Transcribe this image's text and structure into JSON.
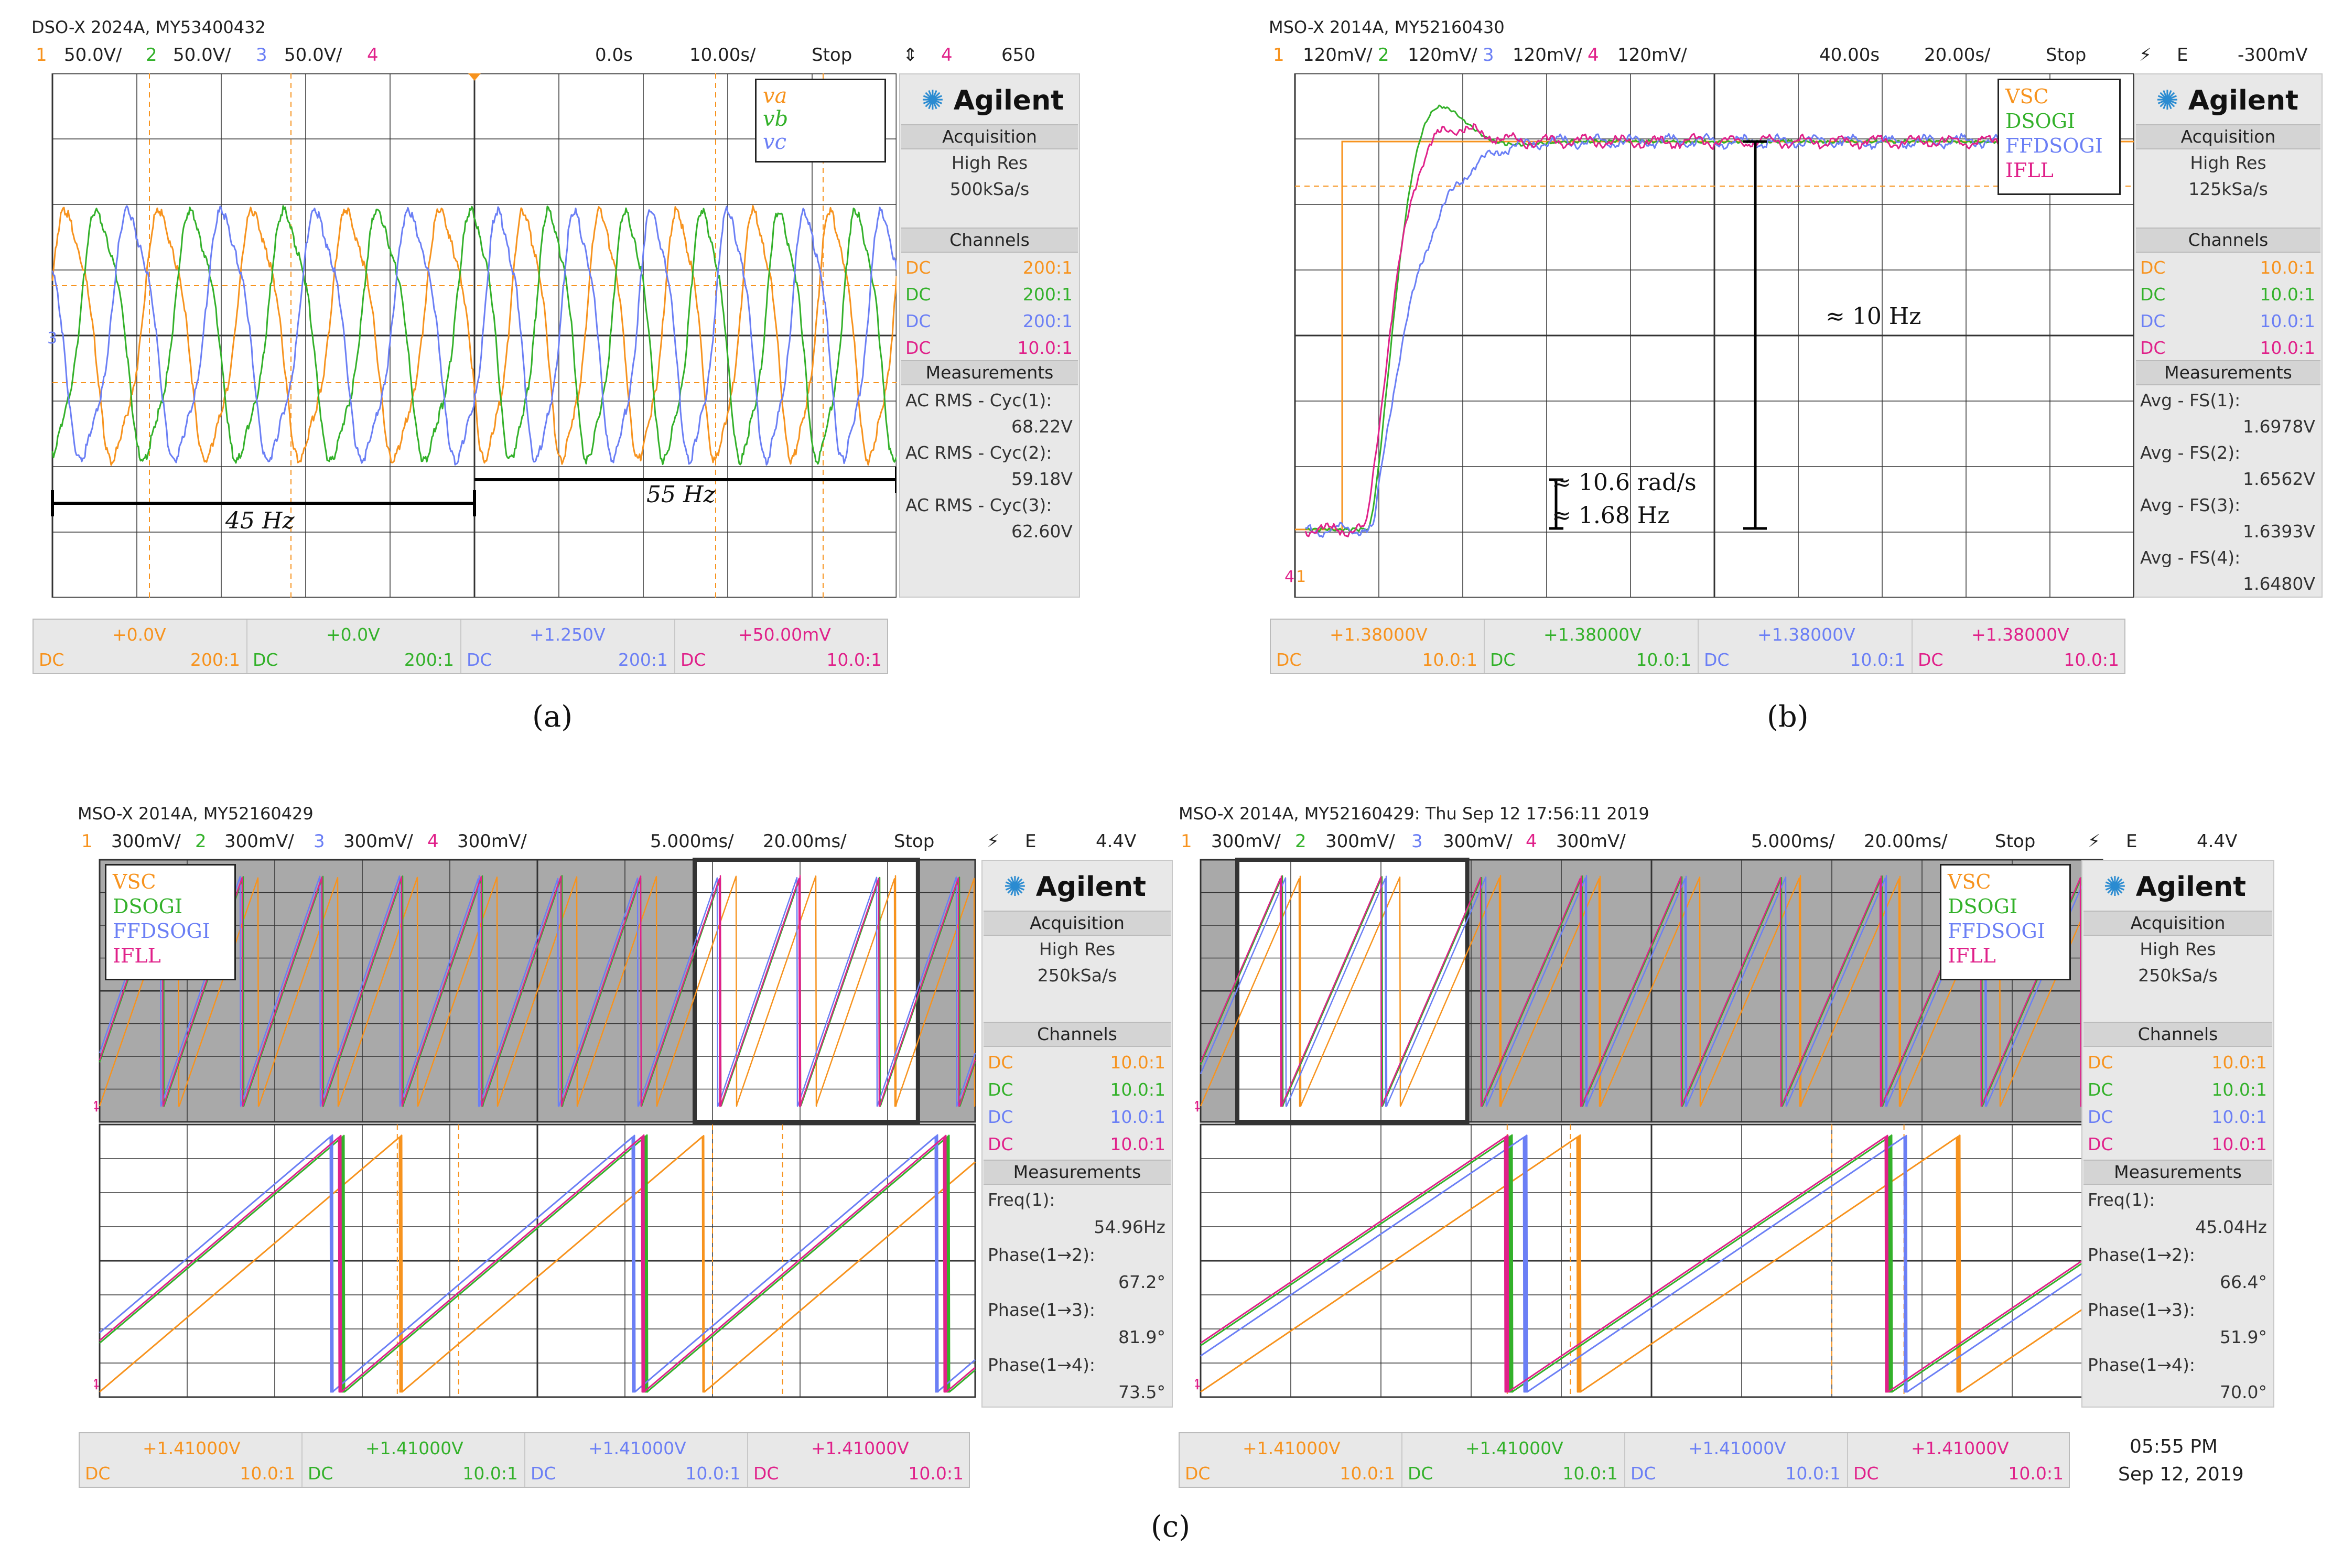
{
  "colors": {
    "orange": "#f7931e",
    "green": "#33b12a",
    "blue": "#6b7ff5",
    "magenta": "#e0218a",
    "grid": "#333333",
    "gray": "#a9a9a9"
  },
  "a": {
    "header": "DSO-X 2024A, MY53400432",
    "ch1": "1",
    "ch1v": "50.0V/",
    "ch2": "2",
    "ch2v": "50.0V/",
    "ch3": "3",
    "ch3v": "50.0V/",
    "ch4": "4",
    "tpos": "0.0s",
    "tdiv": "10.00s/",
    "status": "Stop",
    "trig_ch": "4",
    "trig_lvl": "650",
    "legend": [
      "va",
      "vb",
      "vc"
    ],
    "label_left": "45 Hz",
    "label_right": "55 Hz",
    "brand": "Agilent",
    "acq_hdr": "Acquisition",
    "acq_mode": "High Res",
    "acq_rate": "500kSa/s",
    "chan_hdr": "Channels",
    "channels": [
      {
        "c": "DC",
        "r": "200:1"
      },
      {
        "c": "DC",
        "r": "200:1"
      },
      {
        "c": "DC",
        "r": "200:1"
      },
      {
        "c": "DC",
        "r": "10.0:1"
      }
    ],
    "meas_hdr": "Measurements",
    "meas": [
      {
        "label": "AC RMS - Cyc(1):",
        "value": "68.22V"
      },
      {
        "label": "AC RMS - Cyc(2):",
        "value": "59.18V"
      },
      {
        "label": "AC RMS - Cyc(3):",
        "value": "62.60V"
      }
    ],
    "bottom": [
      {
        "off": "+0.0V",
        "c": "DC",
        "r": "200:1"
      },
      {
        "off": "+0.0V",
        "c": "DC",
        "r": "200:1"
      },
      {
        "off": "+1.250V",
        "c": "DC",
        "r": "200:1"
      },
      {
        "off": "+50.00mV",
        "c": "DC",
        "r": "10.0:1"
      }
    ],
    "caption": "(a)"
  },
  "b": {
    "header": "MSO-X 2014A, MY52160430",
    "ch1": "1",
    "ch1v": "120mV/",
    "ch2": "2",
    "ch2v": "120mV/",
    "ch3": "3",
    "ch3v": "120mV/",
    "ch4": "4",
    "ch4v": "120mV/",
    "tpos": "40.00s",
    "tdiv": "20.00s/",
    "status": "Stop",
    "trig_e": "E",
    "trig_lvl": "-300mV",
    "legend": [
      "VSC",
      "DSOGI",
      "FFDSOGI",
      "IFLL"
    ],
    "ann_10hz": "≈ 10 Hz",
    "ann_rad": "≈ 10.6 rad/s",
    "ann_168": "≈ 1.68 Hz",
    "brand": "Agilent",
    "acq_hdr": "Acquisition",
    "acq_mode": "High Res",
    "acq_rate": "125kSa/s",
    "chan_hdr": "Channels",
    "channels": [
      {
        "c": "DC",
        "r": "10.0:1"
      },
      {
        "c": "DC",
        "r": "10.0:1"
      },
      {
        "c": "DC",
        "r": "10.0:1"
      },
      {
        "c": "DC",
        "r": "10.0:1"
      }
    ],
    "meas_hdr": "Measurements",
    "meas": [
      {
        "label": "Avg - FS(1):",
        "value": "1.6978V"
      },
      {
        "label": "Avg - FS(2):",
        "value": "1.6562V"
      },
      {
        "label": "Avg - FS(3):",
        "value": "1.6393V"
      },
      {
        "label": "Avg - FS(4):",
        "value": "1.6480V"
      }
    ],
    "bottom": [
      {
        "off": "+1.38000V",
        "c": "DC",
        "r": "10.0:1"
      },
      {
        "off": "+1.38000V",
        "c": "DC",
        "r": "10.0:1"
      },
      {
        "off": "+1.38000V",
        "c": "DC",
        "r": "10.0:1"
      },
      {
        "off": "+1.38000V",
        "c": "DC",
        "r": "10.0:1"
      }
    ],
    "caption": "(b)"
  },
  "c1": {
    "header": "MSO-X 2014A, MY52160429",
    "ch1": "1",
    "ch1v": "300mV/",
    "ch2": "2",
    "ch2v": "300mV/",
    "ch3": "3",
    "ch3v": "300mV/",
    "ch4": "4",
    "ch4v": "300mV/",
    "tpos": "5.000ms/",
    "tdiv": "20.00ms/",
    "status": "Stop",
    "trig_e": "E",
    "trig_lvl": "4.4V",
    "legend": [
      "VSC",
      "DSOGI",
      "FFDSOGI",
      "IFLL"
    ],
    "brand": "Agilent",
    "acq_hdr": "Acquisition",
    "acq_mode": "High Res",
    "acq_rate": "250kSa/s",
    "chan_hdr": "Channels",
    "channels": [
      {
        "c": "DC",
        "r": "10.0:1"
      },
      {
        "c": "DC",
        "r": "10.0:1"
      },
      {
        "c": "DC",
        "r": "10.0:1"
      },
      {
        "c": "DC",
        "r": "10.0:1"
      }
    ],
    "meas_hdr": "Measurements",
    "meas": [
      {
        "label": "Freq(1):",
        "value": "54.96Hz"
      },
      {
        "label": "Phase(1→2):",
        "value": "67.2°"
      },
      {
        "label": "Phase(1→3):",
        "value": "81.9°"
      },
      {
        "label": "Phase(1→4):",
        "value": "73.5°"
      }
    ],
    "bottom": [
      {
        "off": "+1.41000V",
        "c": "DC",
        "r": "10.0:1"
      },
      {
        "off": "+1.41000V",
        "c": "DC",
        "r": "10.0:1"
      },
      {
        "off": "+1.41000V",
        "c": "DC",
        "r": "10.0:1"
      },
      {
        "off": "+1.41000V",
        "c": "DC",
        "r": "10.0:1"
      }
    ]
  },
  "c2": {
    "header": "MSO-X 2014A, MY52160429: Thu Sep 12 17:56:11 2019",
    "ch1": "1",
    "ch1v": "300mV/",
    "ch2": "2",
    "ch2v": "300mV/",
    "ch3": "3",
    "ch3v": "300mV/",
    "ch4": "4",
    "ch4v": "300mV/",
    "tpos": "5.000ms/",
    "tdiv": "20.00ms/",
    "status": "Stop",
    "trig_e": "E",
    "trig_lvl": "4.4V",
    "legend": [
      "VSC",
      "DSOGI",
      "FFDSOGI",
      "IFLL"
    ],
    "brand": "Agilent",
    "acq_hdr": "Acquisition",
    "acq_mode": "High Res",
    "acq_rate": "250kSa/s",
    "chan_hdr": "Channels",
    "channels": [
      {
        "c": "DC",
        "r": "10.0:1"
      },
      {
        "c": "DC",
        "r": "10.0:1"
      },
      {
        "c": "DC",
        "r": "10.0:1"
      },
      {
        "c": "DC",
        "r": "10.0:1"
      }
    ],
    "meas_hdr": "Measurements",
    "meas": [
      {
        "label": "Freq(1):",
        "value": "45.04Hz"
      },
      {
        "label": "Phase(1→2):",
        "value": "66.4°"
      },
      {
        "label": "Phase(1→3):",
        "value": "51.9°"
      },
      {
        "label": "Phase(1→4):",
        "value": "70.0°"
      }
    ],
    "bottom": [
      {
        "off": "+1.41000V",
        "c": "DC",
        "r": "10.0:1"
      },
      {
        "off": "+1.41000V",
        "c": "DC",
        "r": "10.0:1"
      },
      {
        "off": "+1.41000V",
        "c": "DC",
        "r": "10.0:1"
      },
      {
        "off": "+1.41000V",
        "c": "DC",
        "r": "10.0:1"
      }
    ],
    "time": "05:55 PM",
    "date": "Sep 12, 2019"
  },
  "caption_c": "(c)"
}
